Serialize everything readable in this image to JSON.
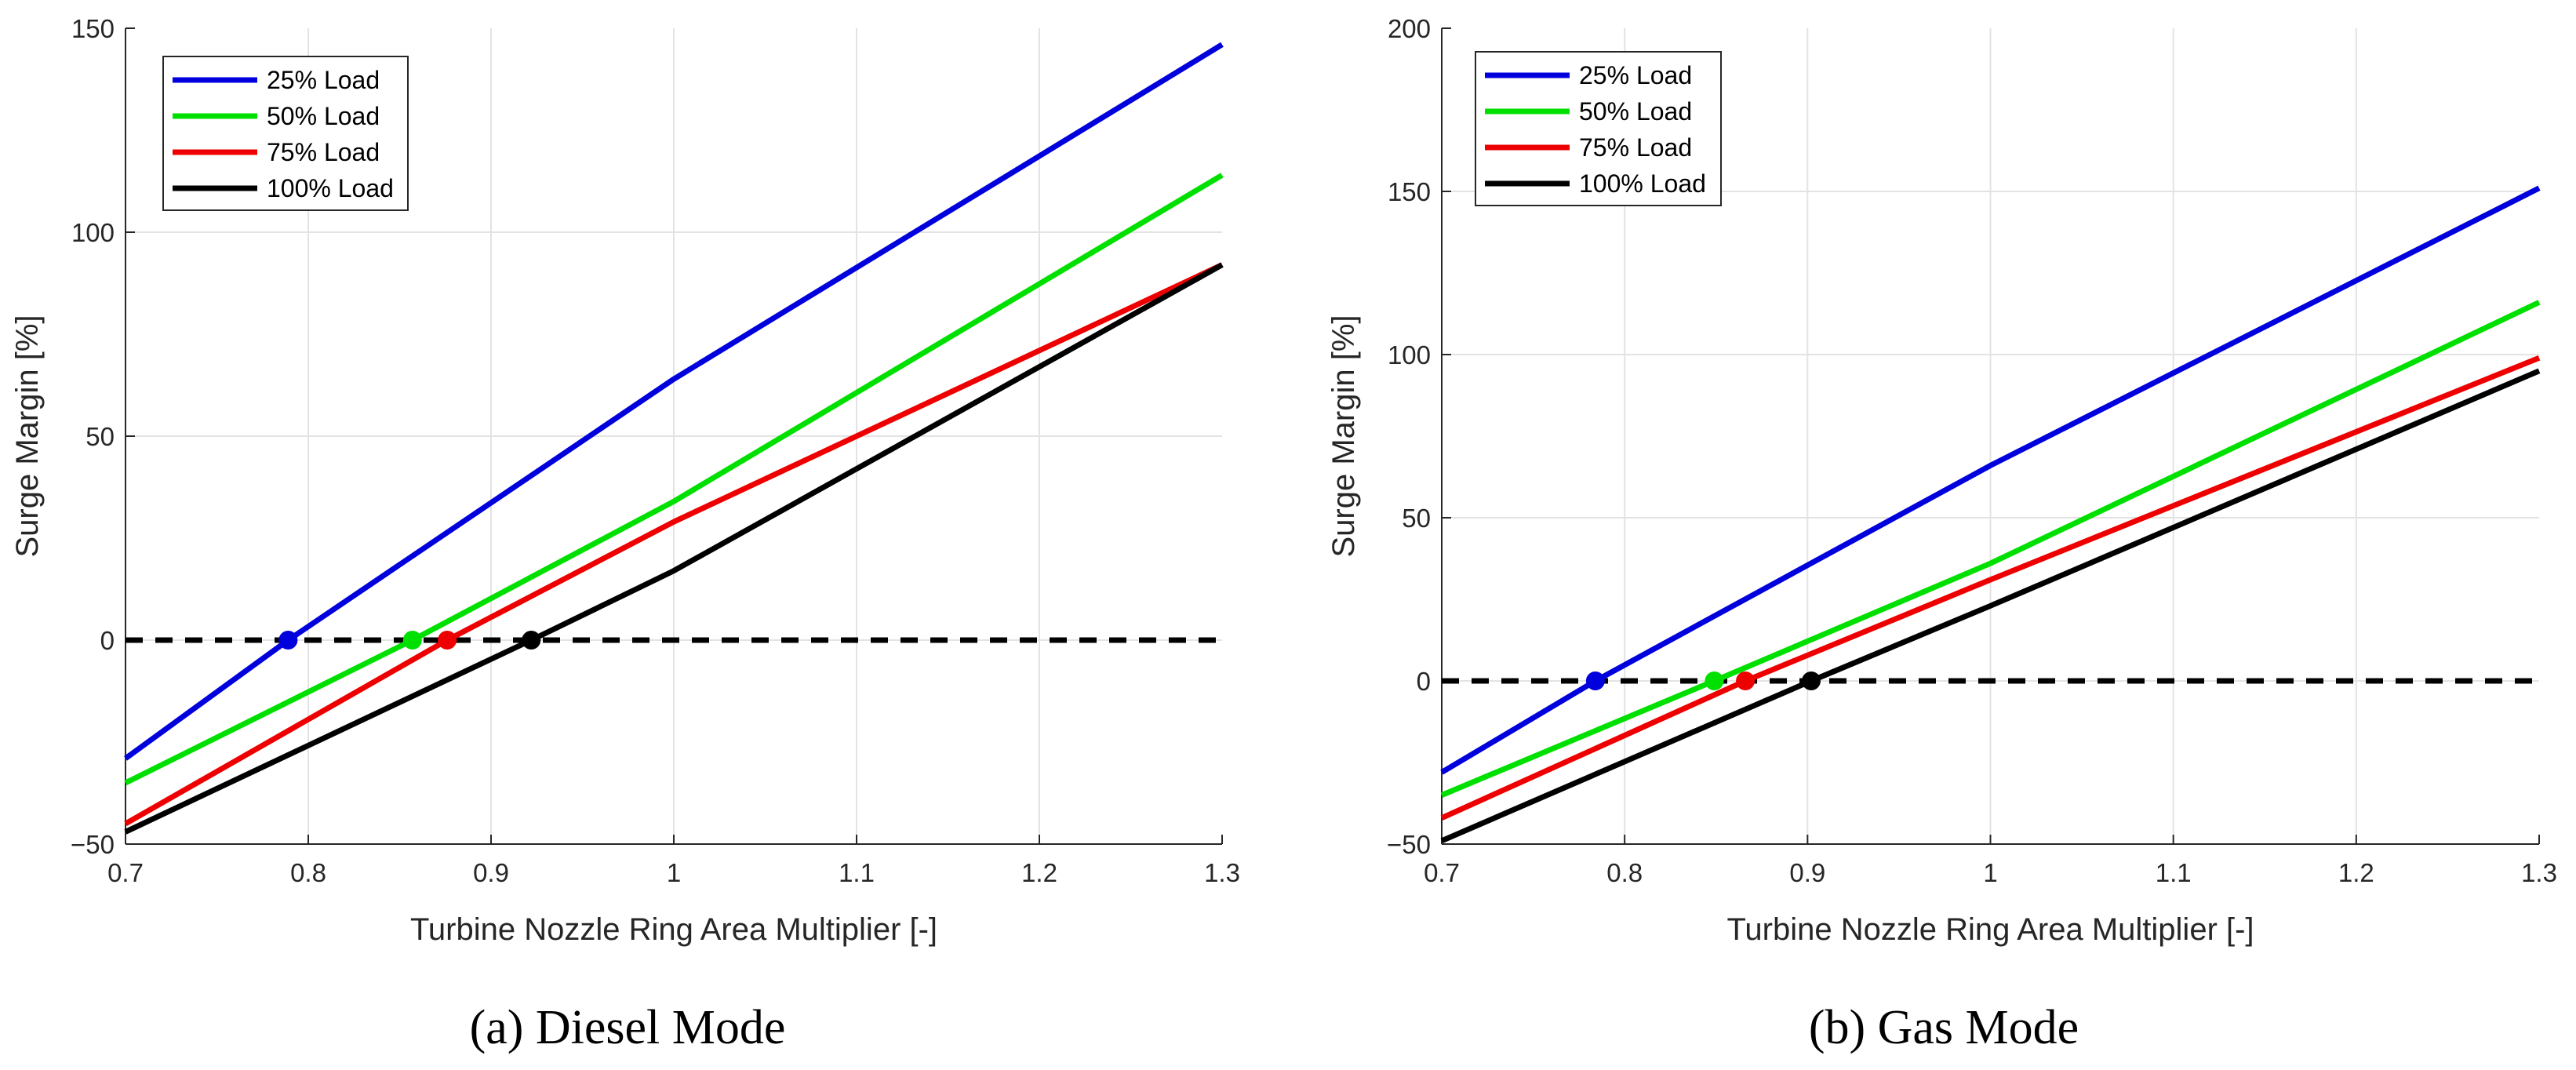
{
  "chart_data": [
    {
      "type": "line",
      "caption": "(a) Diesel Mode",
      "xlabel": "Turbine Nozzle Ring Area Multiplier [-]",
      "ylabel": "Surge Margin [%]",
      "xlim": [
        0.7,
        1.3
      ],
      "ylim": [
        -50,
        150
      ],
      "xticks": [
        0.7,
        0.8,
        0.9,
        1,
        1.1,
        1.2,
        1.3
      ],
      "xtick_labels": [
        "0.7",
        "0.8",
        "0.9",
        "1",
        "1.1",
        "1.2",
        "1.3"
      ],
      "yticks": [
        -50,
        0,
        50,
        100,
        150
      ],
      "ytick_labels": [
        "−50",
        "0",
        "50",
        "100",
        "150"
      ],
      "grid": true,
      "legend_position": "top-left",
      "reference_line": {
        "y": 0,
        "style": "dashed",
        "color": "#000000"
      },
      "series": [
        {
          "name": "25% Load",
          "color": "#0000dd",
          "x": [
            0.7,
            0.789,
            1.0,
            1.3
          ],
          "y": [
            -29,
            0,
            64,
            146
          ],
          "zero_crossing": 0.789
        },
        {
          "name": "50% Load",
          "color": "#00e000",
          "x": [
            0.7,
            0.857,
            1.0,
            1.3
          ],
          "y": [
            -35,
            0,
            34,
            114
          ],
          "zero_crossing": 0.857
        },
        {
          "name": "75% Load",
          "color": "#ee0000",
          "x": [
            0.7,
            0.876,
            1.0,
            1.3
          ],
          "y": [
            -45,
            0,
            29,
            92
          ],
          "zero_crossing": 0.876
        },
        {
          "name": "100% Load",
          "color": "#000000",
          "x": [
            0.7,
            0.922,
            1.0,
            1.3
          ],
          "y": [
            -47,
            0,
            17,
            92
          ],
          "zero_crossing": 0.922
        }
      ]
    },
    {
      "type": "line",
      "caption": "(b) Gas Mode",
      "xlabel": "Turbine Nozzle Ring Area Multiplier [-]",
      "ylabel": "Surge Margin [%]",
      "xlim": [
        0.7,
        1.3
      ],
      "ylim": [
        -50,
        200
      ],
      "xticks": [
        0.7,
        0.8,
        0.9,
        1,
        1.1,
        1.2,
        1.3
      ],
      "xtick_labels": [
        "0.7",
        "0.8",
        "0.9",
        "1",
        "1.1",
        "1.2",
        "1.3"
      ],
      "yticks": [
        -50,
        0,
        50,
        100,
        150,
        200
      ],
      "ytick_labels": [
        "−50",
        "0",
        "50",
        "100",
        "150",
        "200"
      ],
      "grid": true,
      "legend_position": "top-left",
      "reference_line": {
        "y": 0,
        "style": "dashed",
        "color": "#000000"
      },
      "series": [
        {
          "name": "25% Load",
          "color": "#0000dd",
          "x": [
            0.7,
            0.784,
            1.0,
            1.3
          ],
          "y": [
            -28,
            0,
            66,
            151
          ],
          "zero_crossing": 0.784
        },
        {
          "name": "50% Load",
          "color": "#00e000",
          "x": [
            0.7,
            0.849,
            1.0,
            1.3
          ],
          "y": [
            -35,
            0,
            36,
            116
          ],
          "zero_crossing": 0.849
        },
        {
          "name": "75% Load",
          "color": "#ee0000",
          "x": [
            0.7,
            0.866,
            1.0,
            1.3
          ],
          "y": [
            -42,
            0,
            31,
            99
          ],
          "zero_crossing": 0.866
        },
        {
          "name": "100% Load",
          "color": "#000000",
          "x": [
            0.7,
            0.902,
            1.0,
            1.3
          ],
          "y": [
            -49,
            0,
            23,
            95
          ],
          "zero_crossing": 0.902
        }
      ]
    }
  ]
}
